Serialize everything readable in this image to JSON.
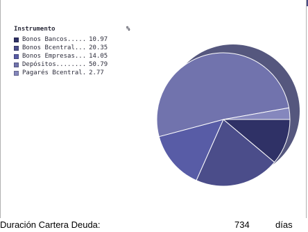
{
  "chart_data": {
    "type": "pie",
    "legend_header": {
      "name": "Instrumento",
      "value": "%"
    },
    "slices": [
      {
        "name": "Bonos Bancos",
        "label": "Bonos Bancos.....",
        "value": 10.97,
        "value_text": "10.97",
        "color": "#2f3166"
      },
      {
        "name": "Bonos Bcentral",
        "label": "Bonos Bcentral...",
        "value": 20.35,
        "value_text": "20.35",
        "color": "#4b4d8a"
      },
      {
        "name": "Bonos Empresas",
        "label": "Bonos Empresas...",
        "value": 14.05,
        "value_text": "14.05",
        "color": "#585ca6"
      },
      {
        "name": "Depósitos",
        "label": "Depósitos........",
        "value": 50.79,
        "value_text": "50.79",
        "color": "#7173ad"
      },
      {
        "name": "Pagarés Bcentral",
        "label": "Pagarés Bcentral.",
        "value": 2.77,
        "value_text": "2.77",
        "color": "#8587bd"
      }
    ],
    "legend_placement": "top-left"
  },
  "footer": {
    "label": "Duración Cartera Deuda:",
    "value": "734",
    "unit": "días"
  },
  "colors": {
    "top_strip": "#4a4c86",
    "shadow": "#55577e"
  }
}
